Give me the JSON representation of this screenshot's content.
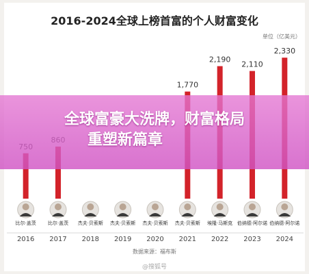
{
  "chart_data": {
    "type": "bar",
    "title": "2016-2024全球上榜首富的个人财富变化",
    "unit_note": "单位（亿美元）",
    "categories": [
      "2016",
      "2017",
      "2018",
      "2019",
      "2020",
      "2021",
      "2022",
      "2023",
      "2024"
    ],
    "values": [
      750,
      860,
      null,
      null,
      null,
      1770,
      2190,
      2110,
      2330
    ],
    "value_labels": [
      "750",
      "860",
      "",
      "",
      "",
      "1,770",
      "2,190",
      "2,110",
      "2,330"
    ],
    "persons": [
      "比尔·盖茨",
      "比尔·盖茨",
      "杰夫·贝索斯",
      "杰夫·贝索斯",
      "杰夫·贝索斯",
      "杰夫·贝索斯",
      "埃隆·马斯克",
      "伯纳德·阿尔诺",
      "伯纳德·阿尔诺"
    ],
    "ylim": [
      0,
      2400
    ],
    "bar_color": "#d3232a",
    "source": "数据来源：福布斯"
  },
  "overlay": {
    "line1": "全球富豪大洗牌，财富格局",
    "line2": "重塑新篇章",
    "color": "#e070d0"
  },
  "watermark": "@搜狐号"
}
